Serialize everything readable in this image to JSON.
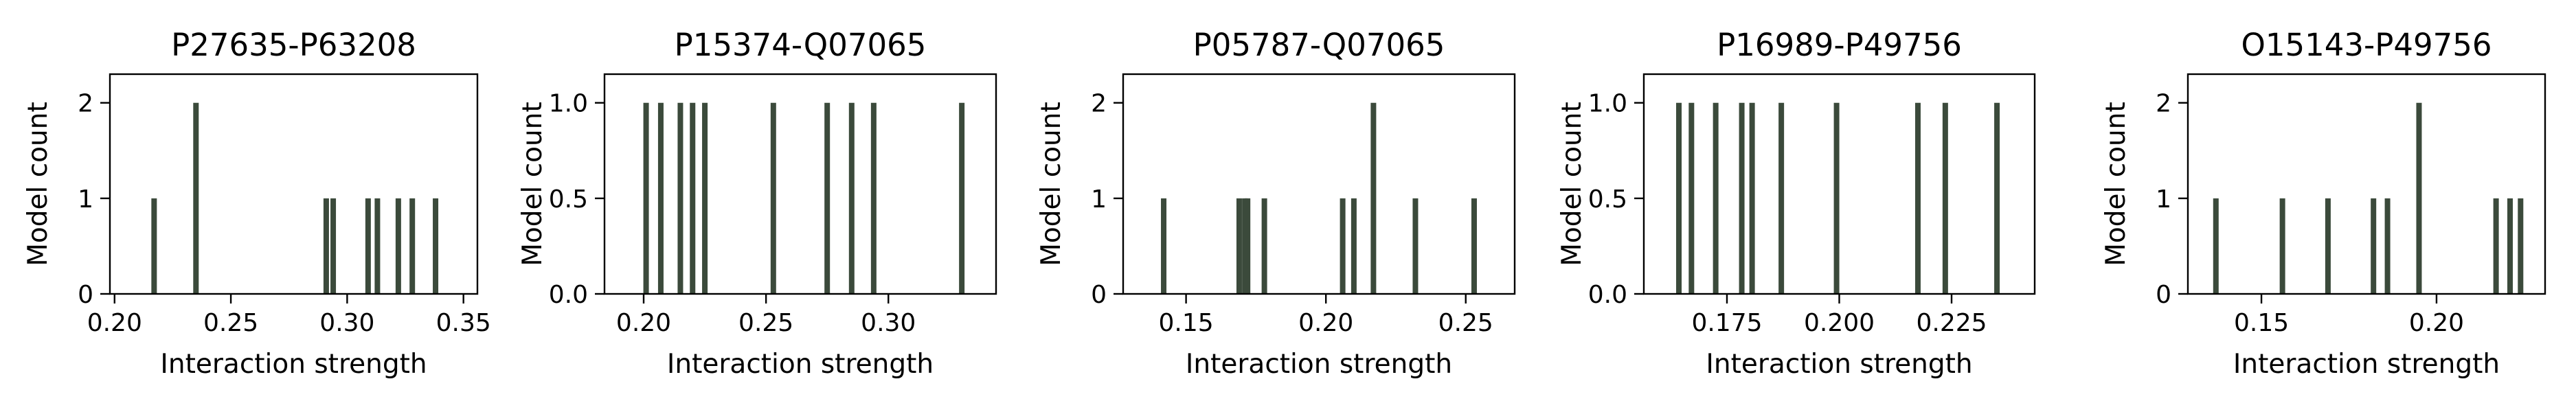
{
  "chart_data": [
    {
      "type": "bar",
      "title": "P27635-P63208",
      "xlabel": "Interaction strength",
      "ylabel": "Model count",
      "xlim": [
        0.198,
        0.356
      ],
      "ylim": [
        0,
        2.3
      ],
      "xticks": [
        0.2,
        0.25,
        0.3,
        0.35
      ],
      "xtick_labels": [
        "0.20",
        "0.25",
        "0.30",
        "0.35"
      ],
      "yticks": [
        0,
        1,
        2
      ],
      "ytick_labels": [
        "0",
        "1",
        "2"
      ],
      "bars": [
        {
          "x": 0.217,
          "count": 1
        },
        {
          "x": 0.235,
          "count": 2
        },
        {
          "x": 0.291,
          "count": 1
        },
        {
          "x": 0.294,
          "count": 1
        },
        {
          "x": 0.309,
          "count": 1
        },
        {
          "x": 0.313,
          "count": 1
        },
        {
          "x": 0.322,
          "count": 1
        },
        {
          "x": 0.328,
          "count": 1
        },
        {
          "x": 0.338,
          "count": 1
        }
      ]
    },
    {
      "type": "bar",
      "title": "P15374-Q07065",
      "xlabel": "Interaction strength",
      "ylabel": "Model count",
      "xlim": [
        0.184,
        0.344
      ],
      "ylim": [
        0,
        1.15
      ],
      "xticks": [
        0.2,
        0.25,
        0.3
      ],
      "xtick_labels": [
        "0.20",
        "0.25",
        "0.30"
      ],
      "yticks": [
        0.0,
        0.5,
        1.0
      ],
      "ytick_labels": [
        "0.0",
        "0.5",
        "1.0"
      ],
      "bars": [
        {
          "x": 0.201,
          "count": 1
        },
        {
          "x": 0.207,
          "count": 1
        },
        {
          "x": 0.215,
          "count": 1
        },
        {
          "x": 0.22,
          "count": 1
        },
        {
          "x": 0.225,
          "count": 1
        },
        {
          "x": 0.253,
          "count": 1
        },
        {
          "x": 0.275,
          "count": 1
        },
        {
          "x": 0.285,
          "count": 1
        },
        {
          "x": 0.294,
          "count": 1
        },
        {
          "x": 0.33,
          "count": 1
        }
      ]
    },
    {
      "type": "bar",
      "title": "P05787-Q07065",
      "xlabel": "Interaction strength",
      "ylabel": "Model count",
      "xlim": [
        0.1275,
        0.2675
      ],
      "ylim": [
        0,
        2.3
      ],
      "xticks": [
        0.15,
        0.2,
        0.25
      ],
      "xtick_labels": [
        "0.15",
        "0.20",
        "0.25"
      ],
      "yticks": [
        0,
        1,
        2
      ],
      "ytick_labels": [
        "0",
        "1",
        "2"
      ],
      "bars": [
        {
          "x": 0.142,
          "count": 1
        },
        {
          "x": 0.169,
          "count": 1
        },
        {
          "x": 0.171,
          "count": 1
        },
        {
          "x": 0.172,
          "count": 1
        },
        {
          "x": 0.178,
          "count": 1
        },
        {
          "x": 0.206,
          "count": 1
        },
        {
          "x": 0.21,
          "count": 1
        },
        {
          "x": 0.217,
          "count": 2
        },
        {
          "x": 0.232,
          "count": 1
        },
        {
          "x": 0.253,
          "count": 1
        }
      ]
    },
    {
      "type": "bar",
      "title": "P16989-P49756",
      "xlabel": "Interaction strength",
      "ylabel": "Model count",
      "xlim": [
        0.1565,
        0.2435
      ],
      "ylim": [
        0,
        1.15
      ],
      "xticks": [
        0.175,
        0.2,
        0.225
      ],
      "xtick_labels": [
        "0.175",
        "0.200",
        "0.225"
      ],
      "yticks": [
        0.0,
        0.5,
        1.0
      ],
      "ytick_labels": [
        "0.0",
        "0.5",
        "1.0"
      ],
      "bars": [
        {
          "x": 0.1643,
          "count": 1
        },
        {
          "x": 0.1671,
          "count": 1
        },
        {
          "x": 0.1725,
          "count": 1
        },
        {
          "x": 0.1783,
          "count": 1
        },
        {
          "x": 0.1806,
          "count": 1
        },
        {
          "x": 0.1871,
          "count": 1
        },
        {
          "x": 0.1994,
          "count": 1
        },
        {
          "x": 0.2175,
          "count": 1
        },
        {
          "x": 0.2236,
          "count": 1
        },
        {
          "x": 0.2351,
          "count": 1
        }
      ]
    },
    {
      "type": "bar",
      "title": "O15143-P49756",
      "xlabel": "Interaction strength",
      "ylabel": "Model count",
      "xlim": [
        0.129,
        0.231
      ],
      "ylim": [
        0,
        2.3
      ],
      "xticks": [
        0.15,
        0.2
      ],
      "xtick_labels": [
        "0.15",
        "0.20"
      ],
      "yticks": [
        0,
        1,
        2
      ],
      "ytick_labels": [
        "0",
        "1",
        "2"
      ],
      "bars": [
        {
          "x": 0.137,
          "count": 1
        },
        {
          "x": 0.156,
          "count": 1
        },
        {
          "x": 0.169,
          "count": 1
        },
        {
          "x": 0.182,
          "count": 1
        },
        {
          "x": 0.186,
          "count": 1
        },
        {
          "x": 0.195,
          "count": 2
        },
        {
          "x": 0.217,
          "count": 1
        },
        {
          "x": 0.221,
          "count": 1
        },
        {
          "x": 0.224,
          "count": 1
        }
      ]
    }
  ]
}
